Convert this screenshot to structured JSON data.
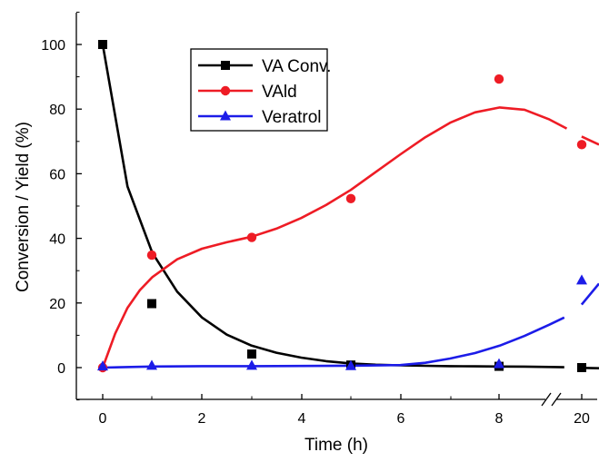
{
  "chart_data": {
    "type": "line",
    "xlabel": "Time (h)",
    "ylabel": "Conversion / Yield (%)",
    "x_ticks": [
      0,
      2,
      4,
      6,
      8,
      20
    ],
    "y_ticks": [
      0,
      20,
      40,
      60,
      80,
      100
    ],
    "ylim": [
      -10,
      110
    ],
    "x_axis_break": "between 8 and 20",
    "legend_position": "top-center",
    "grid": false,
    "series": [
      {
        "name": "VA Conv.",
        "color": "#000000",
        "marker": "square",
        "x": [
          0,
          1,
          3,
          5,
          8,
          20
        ],
        "values": [
          100,
          19.8,
          4.2,
          0.8,
          0.4,
          0
        ],
        "curve_x": [
          0,
          0.5,
          1,
          1.5,
          2,
          2.5,
          3,
          3.5,
          4,
          4.5,
          5,
          5.5,
          6,
          6.5,
          7,
          7.5,
          8,
          8.5,
          9,
          9.3
        ],
        "curve_y": [
          100,
          56,
          35.5,
          23.5,
          15.5,
          10.2,
          6.8,
          4.6,
          3.1,
          2.0,
          1.3,
          0.9,
          0.7,
          0.55,
          0.45,
          0.4,
          0.35,
          0.3,
          0.2,
          0.1
        ]
      },
      {
        "name": "VAld",
        "color": "#ee1c25",
        "marker": "circle",
        "x": [
          0,
          1,
          3,
          5,
          8,
          20
        ],
        "values": [
          0,
          34.8,
          40.3,
          52.3,
          89.3,
          69
        ],
        "curve_x": [
          0,
          0.25,
          0.5,
          0.75,
          1,
          1.5,
          2,
          2.5,
          3,
          3.5,
          4,
          4.5,
          5,
          5.5,
          6,
          6.5,
          7,
          7.5,
          8,
          8.5,
          9,
          9.35
        ],
        "curve_y": [
          0,
          10.5,
          18.5,
          24,
          28,
          33.5,
          36.8,
          38.8,
          40.5,
          43,
          46.3,
          50.3,
          55,
          60.5,
          66,
          71.3,
          75.8,
          79,
          80.5,
          79.8,
          76.8,
          74
        ]
      },
      {
        "name": "Veratrol",
        "color": "#1c1ce8",
        "marker": "triangle",
        "x": [
          0,
          1,
          3,
          5,
          8,
          20
        ],
        "values": [
          0.4,
          0.6,
          0.6,
          0.5,
          1.1,
          27
        ],
        "curve_x": [
          0,
          1,
          2,
          3,
          4,
          5,
          6,
          6.5,
          7,
          7.5,
          8,
          8.5,
          9,
          9.3
        ],
        "curve_y": [
          0,
          0.35,
          0.45,
          0.45,
          0.5,
          0.6,
          0.8,
          1.5,
          2.8,
          4.5,
          6.8,
          9.8,
          13.3,
          15.5
        ]
      }
    ],
    "tail_segments": [
      {
        "series": 0,
        "x": [
          9.65,
          10.0
        ],
        "y": [
          -0.1,
          -0.2
        ]
      },
      {
        "series": 1,
        "x": [
          9.65,
          10.0
        ],
        "y": [
          71.5,
          69
        ]
      },
      {
        "series": 2,
        "x": [
          9.65,
          10.0
        ],
        "y": [
          19.5,
          26
        ]
      }
    ]
  }
}
